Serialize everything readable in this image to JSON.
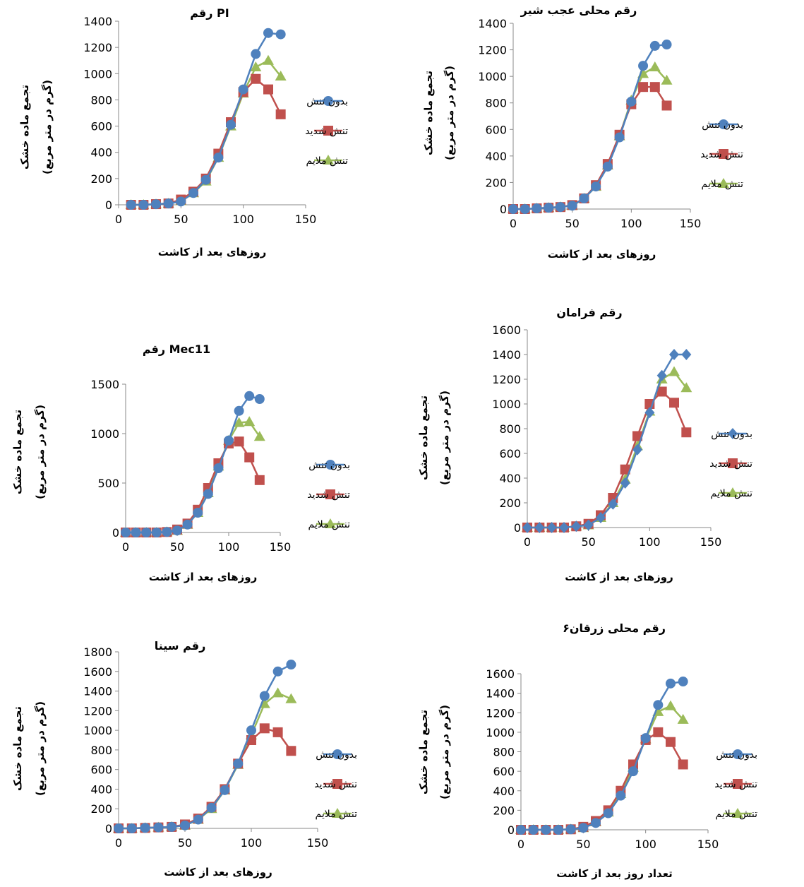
{
  "chart_data": [
    {
      "type": "line",
      "title": "رقم PI",
      "xlabel": "روزهای بعد از کاشت",
      "ylabel": "تجمع ماده خشک",
      "ylabel2": "(گرم در متر مربع)",
      "xlim": [
        0,
        150
      ],
      "ylim": [
        0,
        1400
      ],
      "xticks": [
        0,
        50,
        100,
        150
      ],
      "yticks": [
        0,
        200,
        400,
        600,
        800,
        1000,
        1200,
        1400
      ],
      "legend_position": "right",
      "series": [
        {
          "name": "بدون تنش",
          "color": "#4f81bd",
          "marker": "circle",
          "x": [
            10,
            20,
            30,
            40,
            50,
            60,
            70,
            80,
            90,
            100,
            110,
            120,
            130
          ],
          "y": [
            0,
            0,
            5,
            10,
            25,
            90,
            190,
            360,
            610,
            880,
            1150,
            1310,
            1300
          ]
        },
        {
          "name": "تنش شدید",
          "color": "#c0504d",
          "marker": "square",
          "x": [
            10,
            20,
            30,
            40,
            50,
            60,
            70,
            80,
            90,
            100,
            110,
            120,
            130
          ],
          "y": [
            0,
            0,
            5,
            10,
            40,
            100,
            200,
            390,
            630,
            860,
            960,
            880,
            690
          ]
        },
        {
          "name": "تنش ملایم",
          "color": "#9bbb59",
          "marker": "triangle",
          "x": [
            10,
            20,
            30,
            40,
            50,
            60,
            70,
            80,
            90,
            100,
            110,
            120,
            130
          ],
          "y": [
            0,
            0,
            5,
            10,
            30,
            90,
            180,
            360,
            600,
            850,
            1050,
            1100,
            980
          ]
        }
      ]
    },
    {
      "type": "line",
      "title": "رقم محلی عجب شیر",
      "xlabel": "روزهای بعد از کاشت",
      "ylabel": "تجمع ماده خشک",
      "ylabel2": "(گرم در متر مربع)",
      "xlim": [
        0,
        150
      ],
      "ylim": [
        0,
        1400
      ],
      "xticks": [
        0,
        50,
        100,
        150
      ],
      "yticks": [
        0,
        200,
        400,
        600,
        800,
        1000,
        1200,
        1400
      ],
      "legend_position": "right",
      "series": [
        {
          "name": "بدون تنش",
          "color": "#4f81bd",
          "marker": "circle",
          "x": [
            0,
            10,
            20,
            30,
            40,
            50,
            60,
            70,
            80,
            90,
            100,
            110,
            120,
            130
          ],
          "y": [
            0,
            0,
            5,
            10,
            15,
            25,
            80,
            170,
            320,
            540,
            810,
            1080,
            1230,
            1240
          ]
        },
        {
          "name": "تنش شدید",
          "color": "#c0504d",
          "marker": "square",
          "x": [
            0,
            10,
            20,
            30,
            40,
            50,
            60,
            70,
            80,
            90,
            100,
            110,
            120,
            130
          ],
          "y": [
            0,
            0,
            5,
            10,
            15,
            30,
            80,
            180,
            340,
            560,
            790,
            920,
            920,
            780
          ]
        },
        {
          "name": "تنش ملایم",
          "color": "#9bbb59",
          "marker": "triangle",
          "x": [
            0,
            10,
            20,
            30,
            40,
            50,
            60,
            70,
            80,
            90,
            100,
            110,
            120,
            130
          ],
          "y": [
            0,
            0,
            5,
            10,
            15,
            25,
            80,
            170,
            330,
            550,
            820,
            1020,
            1070,
            970
          ]
        }
      ]
    },
    {
      "type": "line",
      "title": "رقم Mec11",
      "xlabel": "روزهای بعد از کاشت",
      "ylabel": "تجمع ماده خشک",
      "ylabel2": "(گرم در متر مربع)",
      "xlim": [
        0,
        150
      ],
      "ylim": [
        0,
        1500
      ],
      "xticks": [
        0,
        50,
        100,
        150
      ],
      "yticks": [
        0,
        500,
        1000,
        1500
      ],
      "legend_position": "right",
      "series": [
        {
          "name": "بدون تنش",
          "color": "#4f81bd",
          "marker": "circle",
          "x": [
            0,
            10,
            20,
            30,
            40,
            50,
            60,
            70,
            80,
            90,
            100,
            110,
            120,
            130
          ],
          "y": [
            0,
            0,
            0,
            0,
            5,
            20,
            80,
            200,
            390,
            650,
            930,
            1230,
            1380,
            1350
          ]
        },
        {
          "name": "تنش شدید",
          "color": "#c0504d",
          "marker": "square",
          "x": [
            0,
            10,
            20,
            30,
            40,
            50,
            60,
            70,
            80,
            90,
            100,
            110,
            120,
            130
          ],
          "y": [
            0,
            0,
            0,
            0,
            5,
            30,
            90,
            230,
            450,
            700,
            900,
            920,
            760,
            530
          ]
        },
        {
          "name": "تنش ملایم",
          "color": "#9bbb59",
          "marker": "triangle",
          "x": [
            0,
            10,
            20,
            30,
            40,
            50,
            60,
            70,
            80,
            90,
            100,
            110,
            120,
            130
          ],
          "y": [
            0,
            0,
            0,
            0,
            5,
            20,
            80,
            200,
            400,
            670,
            930,
            1110,
            1120,
            970
          ]
        }
      ]
    },
    {
      "type": "line",
      "title": "رقم فرامان",
      "xlabel": "روزهای بعد از کاشت",
      "ylabel": "تجمع ماده خشک",
      "ylabel2": "(گرم در متر مربع)",
      "xlim": [
        0,
        150
      ],
      "ylim": [
        0,
        1600
      ],
      "xticks": [
        0,
        50,
        100,
        150
      ],
      "yticks": [
        0,
        200,
        400,
        600,
        800,
        1000,
        1200,
        1400,
        1600
      ],
      "legend_position": "right",
      "series": [
        {
          "name": "بدون تنش",
          "color": "#4f81bd",
          "marker": "diamond",
          "x": [
            0,
            10,
            20,
            30,
            40,
            50,
            60,
            70,
            80,
            90,
            100,
            110,
            120,
            130
          ],
          "y": [
            0,
            0,
            0,
            0,
            10,
            20,
            80,
            190,
            360,
            630,
            930,
            1230,
            1400,
            1400
          ]
        },
        {
          "name": "تنش شدید",
          "color": "#c0504d",
          "marker": "square",
          "x": [
            0,
            10,
            20,
            30,
            40,
            50,
            60,
            70,
            80,
            90,
            100,
            110,
            120,
            130
          ],
          "y": [
            0,
            0,
            0,
            0,
            10,
            30,
            100,
            240,
            470,
            740,
            1000,
            1100,
            1010,
            770
          ]
        },
        {
          "name": "تنش ملایم",
          "color": "#9bbb59",
          "marker": "triangle",
          "x": [
            0,
            10,
            20,
            30,
            40,
            50,
            60,
            70,
            80,
            90,
            100,
            110,
            120,
            130
          ],
          "y": [
            0,
            0,
            0,
            0,
            10,
            20,
            80,
            200,
            390,
            660,
            940,
            1200,
            1260,
            1130
          ]
        }
      ]
    },
    {
      "type": "line",
      "title": "رقم سینا",
      "xlabel": "روزهای بعد از کاشت",
      "ylabel": "تجمع ماده خشک",
      "ylabel2": "(گرم در متر مربع)",
      "xlim": [
        0,
        150
      ],
      "ylim": [
        0,
        1800
      ],
      "xticks": [
        0,
        50,
        100,
        150
      ],
      "yticks": [
        0,
        200,
        400,
        600,
        800,
        1000,
        1200,
        1400,
        1600,
        1800
      ],
      "legend_position": "right",
      "series": [
        {
          "name": "بدون تنش",
          "color": "#4f81bd",
          "marker": "circle",
          "x": [
            0,
            10,
            20,
            30,
            40,
            50,
            60,
            70,
            80,
            90,
            100,
            110,
            120,
            130
          ],
          "y": [
            0,
            0,
            5,
            10,
            15,
            30,
            90,
            210,
            390,
            660,
            1000,
            1350,
            1600,
            1670
          ]
        },
        {
          "name": "تنش شدید",
          "color": "#c0504d",
          "marker": "square",
          "x": [
            0,
            10,
            20,
            30,
            40,
            50,
            60,
            70,
            80,
            90,
            100,
            110,
            120,
            130
          ],
          "y": [
            0,
            0,
            5,
            10,
            15,
            40,
            100,
            220,
            400,
            660,
            900,
            1020,
            980,
            790
          ]
        },
        {
          "name": "تنش ملایم",
          "color": "#9bbb59",
          "marker": "triangle",
          "x": [
            0,
            10,
            20,
            30,
            40,
            50,
            60,
            70,
            80,
            90,
            100,
            110,
            120,
            130
          ],
          "y": [
            0,
            0,
            5,
            10,
            15,
            30,
            90,
            200,
            390,
            650,
            950,
            1270,
            1380,
            1320
          ]
        }
      ]
    },
    {
      "type": "line",
      "title": "رقم محلی زرقان۶",
      "xlabel": "تعداد روز بعد از کاشت",
      "ylabel": "تجمع ماده خشک",
      "ylabel2": "(گرم در متر مربع)",
      "xlim": [
        0,
        150
      ],
      "ylim": [
        0,
        1600
      ],
      "xticks": [
        0,
        50,
        100,
        150
      ],
      "yticks": [
        0,
        200,
        400,
        600,
        800,
        1000,
        1200,
        1400,
        1600
      ],
      "legend_position": "right",
      "series": [
        {
          "name": "بدون تنش",
          "color": "#4f81bd",
          "marker": "circle",
          "x": [
            0,
            10,
            20,
            30,
            40,
            50,
            60,
            70,
            80,
            90,
            100,
            110,
            120,
            130
          ],
          "y": [
            0,
            0,
            0,
            0,
            5,
            20,
            70,
            170,
            350,
            600,
            940,
            1280,
            1500,
            1520
          ]
        },
        {
          "name": "تنش شدید",
          "color": "#c0504d",
          "marker": "square",
          "x": [
            0,
            10,
            20,
            30,
            40,
            50,
            60,
            70,
            80,
            90,
            100,
            110,
            120,
            130
          ],
          "y": [
            0,
            0,
            0,
            0,
            5,
            30,
            90,
            200,
            400,
            670,
            920,
            1000,
            900,
            670
          ]
        },
        {
          "name": "تنش ملایم",
          "color": "#9bbb59",
          "marker": "triangle",
          "x": [
            0,
            10,
            20,
            30,
            40,
            50,
            60,
            70,
            80,
            90,
            100,
            110,
            120,
            130
          ],
          "y": [
            0,
            0,
            0,
            0,
            5,
            20,
            80,
            180,
            370,
            640,
            930,
            1210,
            1270,
            1130
          ]
        }
      ]
    }
  ]
}
